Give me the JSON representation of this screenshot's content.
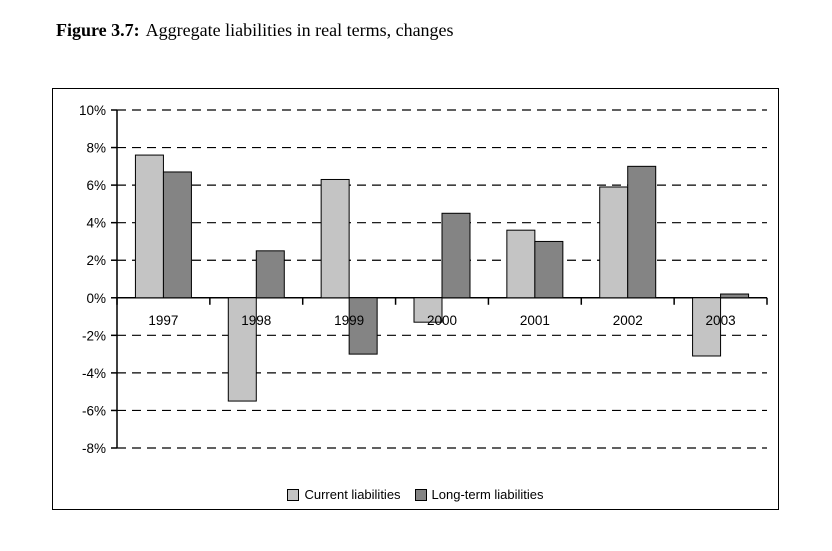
{
  "page": {
    "title_prefix": "Figure 3.7:",
    "title_suffix": "Aggregate liabilities in real terms, changes"
  },
  "chart_data": {
    "type": "bar",
    "title": "",
    "xlabel": "",
    "ylabel": "",
    "categories": [
      "1997",
      "1998",
      "1999",
      "2000",
      "2001",
      "2002",
      "2003"
    ],
    "series": [
      {
        "name": "Current liabilities",
        "color": "#c4c4c4",
        "values": [
          7.6,
          -5.5,
          6.3,
          -1.3,
          3.6,
          5.9,
          -3.1
        ]
      },
      {
        "name": "Long-term liabilities",
        "color": "#848484",
        "values": [
          6.7,
          2.5,
          -3.0,
          4.5,
          3.0,
          7.0,
          0.2
        ]
      }
    ],
    "ylim": [
      -8,
      10
    ],
    "ytick_step": 2,
    "ytick_labels": [
      "10%",
      "8%",
      "6%",
      "4%",
      "2%",
      "0%",
      "-2%",
      "-4%",
      "-6%",
      "-8%"
    ],
    "grid": "dashed-horizontal",
    "legend_position": "bottom-center",
    "bar_border_color": "#000000",
    "axis_color": "#000000"
  }
}
